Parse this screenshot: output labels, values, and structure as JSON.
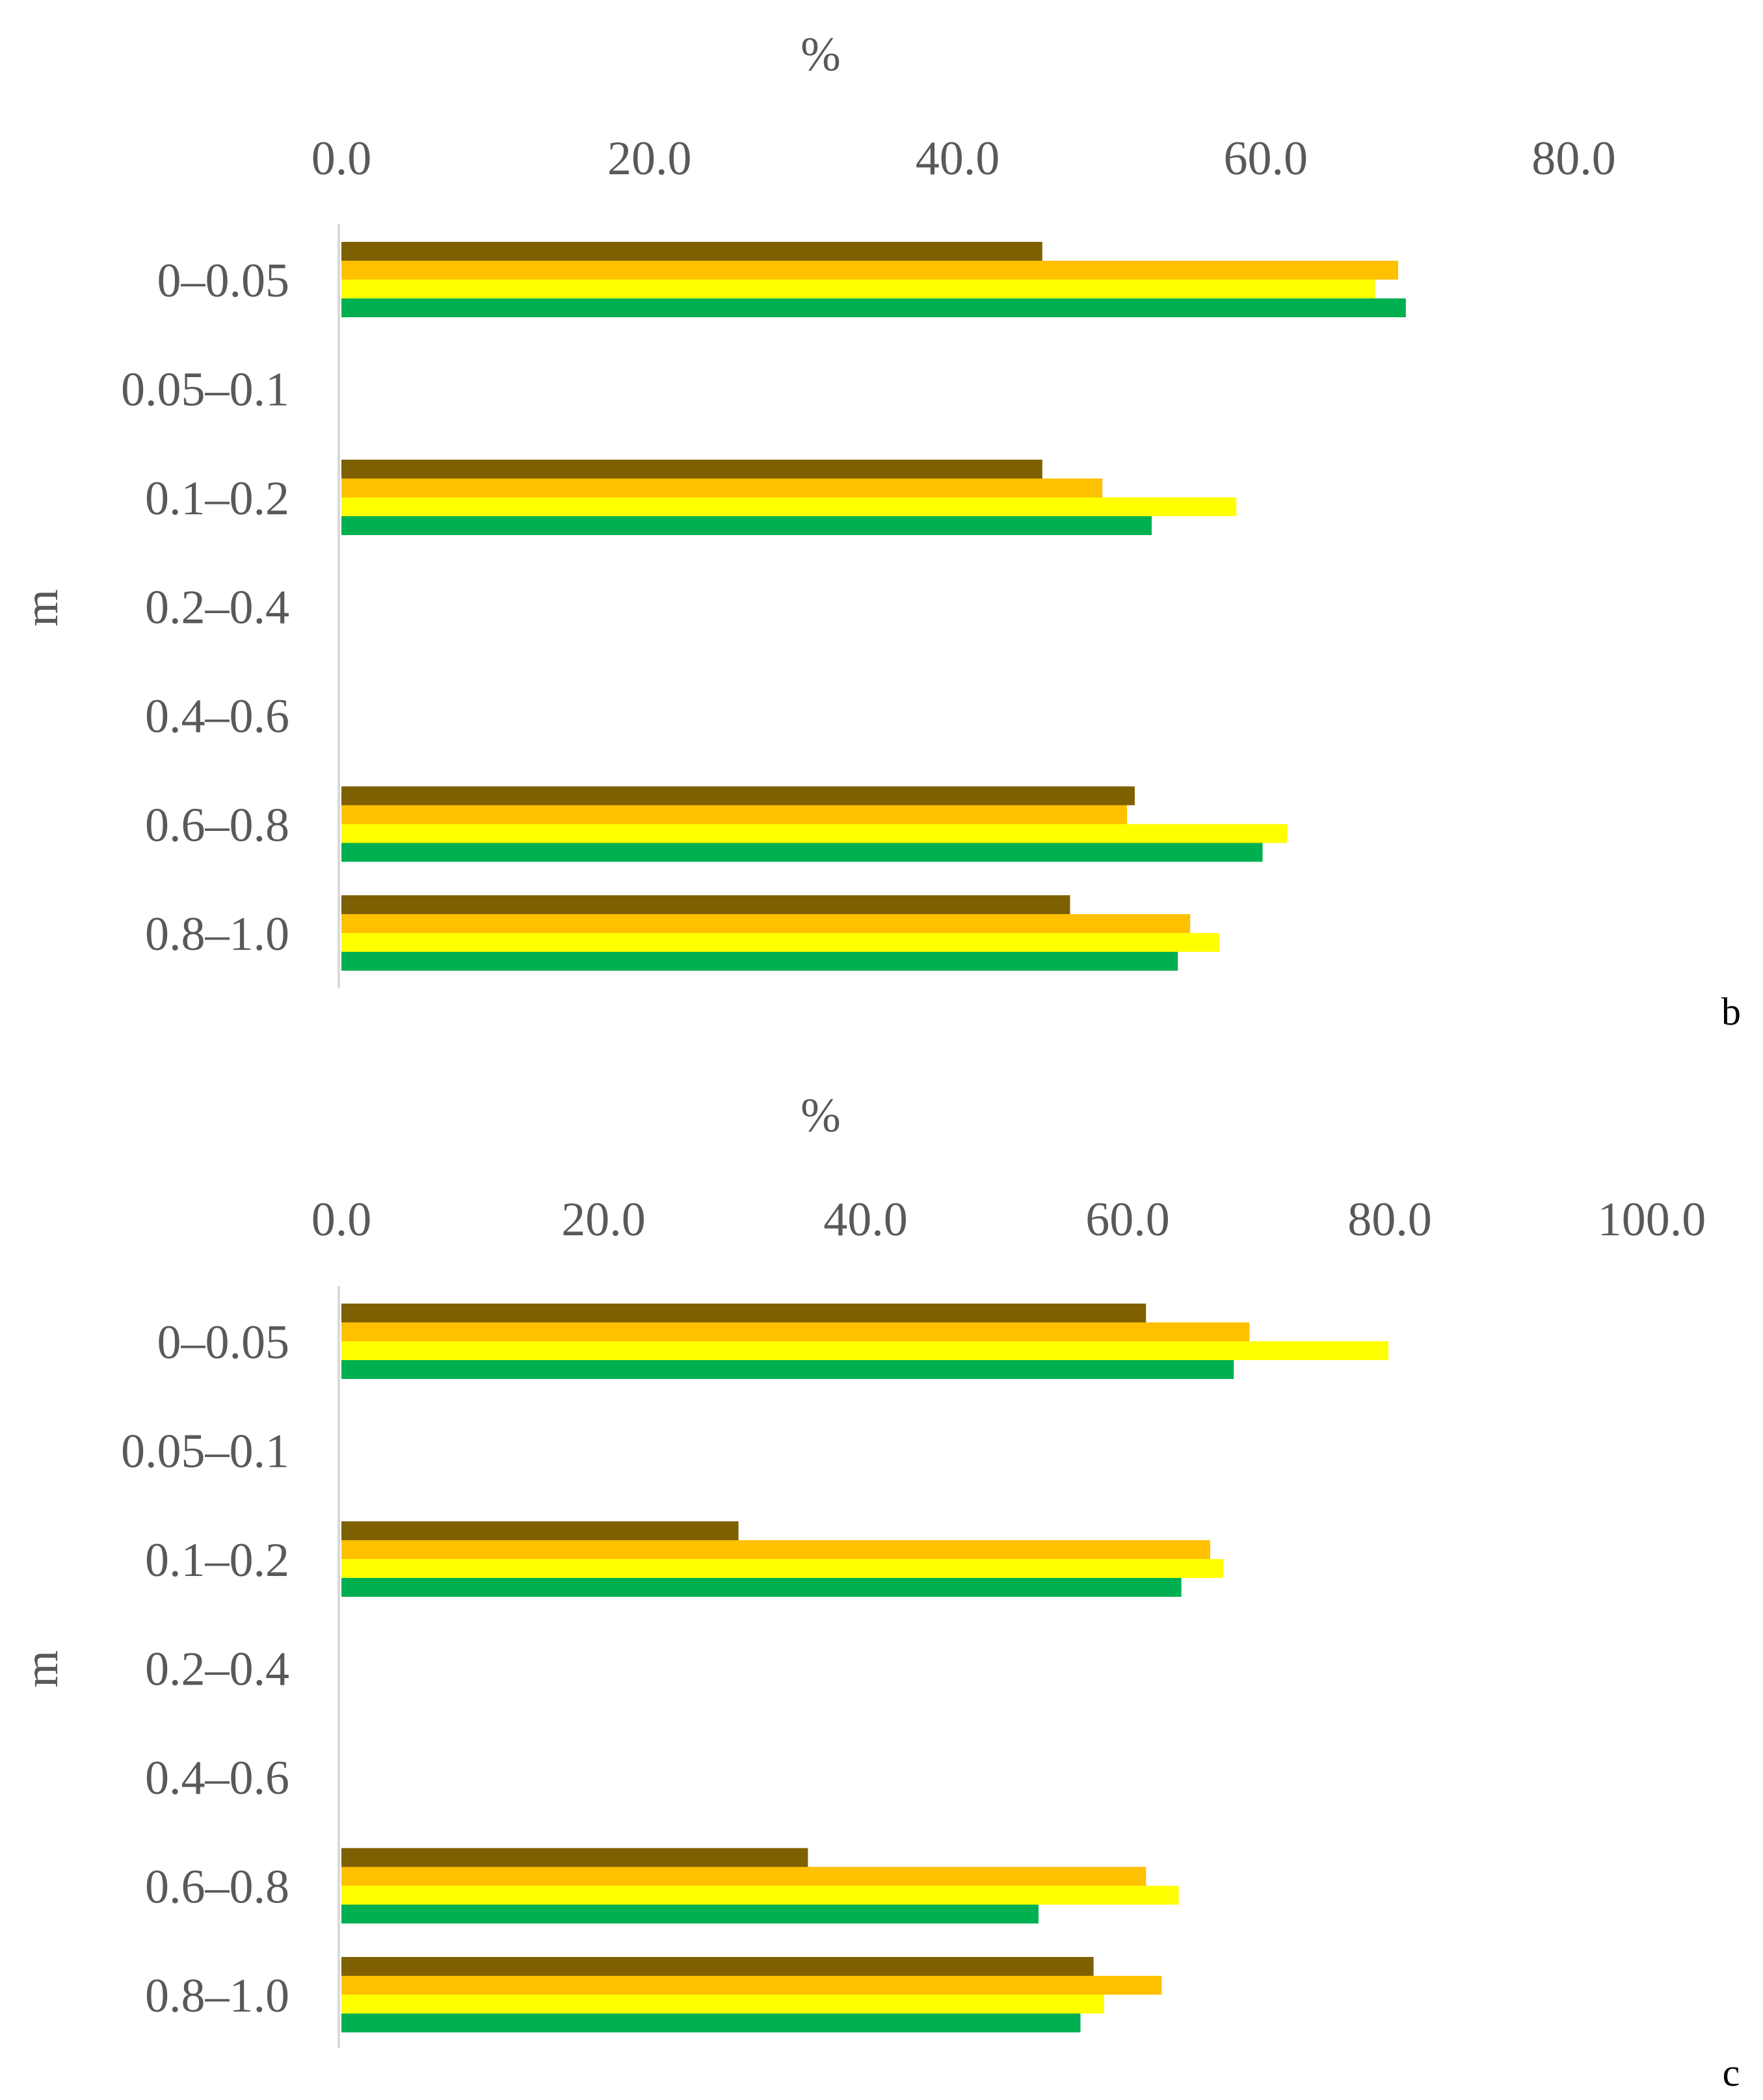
{
  "colors": {
    "series": [
      "#7f6000",
      "#ffc000",
      "#ffff00",
      "#00b050"
    ],
    "axis": "#d9d9d9",
    "text": "#595959"
  },
  "chart_data": [
    {
      "type": "bar",
      "orientation": "horizontal",
      "panel": "b",
      "xlabel": "%",
      "ylabel": "m",
      "xlim": [
        0,
        80
      ],
      "xticks": [
        "0.0",
        "20.0",
        "40.0",
        "60.0",
        "80.0"
      ],
      "categories": [
        "0–0.05",
        "0.05–0.1",
        "0.1–0.2",
        "0.2–0.4",
        "0.4–0.6",
        "0.6–0.8",
        "0.8–1.0"
      ],
      "series": [
        {
          "values": [
            45.5,
            null,
            45.5,
            null,
            null,
            51.5,
            47.3
          ]
        },
        {
          "values": [
            68.6,
            null,
            49.4,
            null,
            null,
            51.0,
            55.1
          ]
        },
        {
          "values": [
            67.1,
            null,
            58.1,
            null,
            null,
            61.4,
            57.0
          ]
        },
        {
          "values": [
            69.1,
            null,
            52.6,
            null,
            null,
            59.8,
            54.3
          ]
        }
      ],
      "legend": "none"
    },
    {
      "type": "bar",
      "orientation": "horizontal",
      "panel": "c",
      "xlabel": "%",
      "ylabel": "m",
      "xlim": [
        0,
        100
      ],
      "xticks": [
        "0.0",
        "20.0",
        "40.0",
        "60.0",
        "80.0",
        "100.0"
      ],
      "categories": [
        "0–0.05",
        "0.05–0.1",
        "0.1–0.2",
        "0.2–0.4",
        "0.4–0.6",
        "0.6–0.8",
        "0.8–1.0"
      ],
      "series": [
        {
          "values": [
            61.4,
            null,
            30.3,
            null,
            null,
            35.6,
            57.4
          ]
        },
        {
          "values": [
            69.3,
            null,
            66.3,
            null,
            null,
            61.4,
            62.6
          ]
        },
        {
          "values": [
            79.9,
            null,
            67.3,
            null,
            null,
            63.9,
            58.2
          ]
        },
        {
          "values": [
            68.1,
            null,
            64.1,
            null,
            null,
            53.2,
            56.4
          ]
        }
      ],
      "legend": "none"
    }
  ]
}
